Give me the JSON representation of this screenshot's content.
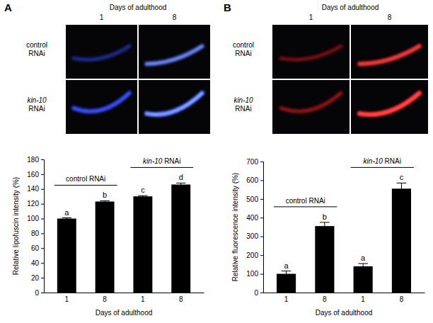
{
  "panels": [
    {
      "label": "A",
      "image_title": "Days of adulthood",
      "image_columns": [
        "1",
        "8"
      ],
      "image_rows": [
        "control RNAi",
        "kin-10 RNAi"
      ]
    },
    {
      "label": "B",
      "image_title": "Days of adulthood",
      "image_columns": [
        "1",
        "8"
      ],
      "image_rows": [
        "control RNAi",
        "kin-10 RNAi"
      ]
    }
  ],
  "chart_data": [
    {
      "type": "bar",
      "x_label": "Days of adulthood",
      "y_label": "Relative lipofuscin intensity (%)",
      "categories": [
        "1",
        "8",
        "1",
        "8"
      ],
      "values": [
        100,
        123,
        130,
        146
      ],
      "errors": [
        1,
        1,
        1,
        2
      ],
      "significance": [
        "a",
        "b",
        "c",
        "d"
      ],
      "group_labels": [
        "control RNAi",
        "kin-10 RNAi"
      ],
      "color": "#000000",
      "ylim": [
        0,
        180
      ],
      "yticks": [
        0,
        20,
        40,
        60,
        80,
        100,
        120,
        140,
        160,
        180
      ]
    },
    {
      "type": "bar",
      "x_label": "Days of adulthood",
      "y_label": "Relative fluorescence intensity (%)",
      "categories": [
        "1",
        "8",
        "1",
        "8"
      ],
      "values": [
        100,
        355,
        140,
        555
      ],
      "errors": [
        15,
        20,
        15,
        30
      ],
      "significance": [
        "a",
        "b",
        "a",
        "c"
      ],
      "group_labels": [
        "control RNAi",
        "kin-10 RNAi"
      ],
      "color": "#000000",
      "ylim": [
        0,
        700
      ],
      "yticks": [
        0,
        100,
        200,
        300,
        400,
        500,
        600,
        700
      ]
    }
  ]
}
